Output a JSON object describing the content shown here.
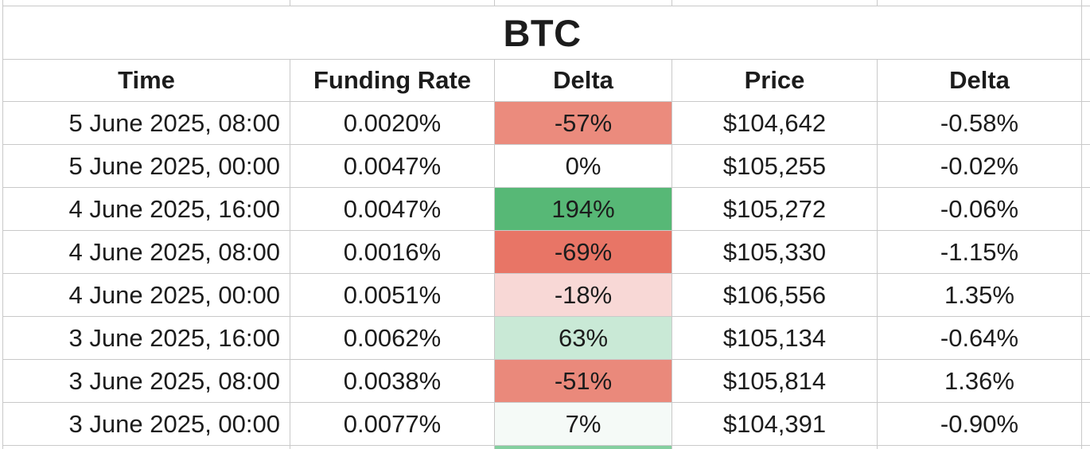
{
  "title": "BTC",
  "columns": [
    "Time",
    "Funding Rate",
    "Delta",
    "Price",
    "Delta"
  ],
  "rows": [
    {
      "time": "5 June 2025, 08:00",
      "funding_rate": "0.0020%",
      "funding_delta": "-57%",
      "funding_delta_bg": "#eb8b7d",
      "price": "$104,642",
      "price_delta": "-0.58%"
    },
    {
      "time": "5 June 2025, 00:00",
      "funding_rate": "0.0047%",
      "funding_delta": "0%",
      "funding_delta_bg": "#ffffff",
      "price": "$105,255",
      "price_delta": "-0.02%"
    },
    {
      "time": "4 June 2025, 16:00",
      "funding_rate": "0.0047%",
      "funding_delta": "194%",
      "funding_delta_bg": "#57b876",
      "price": "$105,272",
      "price_delta": "-0.06%"
    },
    {
      "time": "4 June 2025, 08:00",
      "funding_rate": "0.0016%",
      "funding_delta": "-69%",
      "funding_delta_bg": "#e87566",
      "price": "$105,330",
      "price_delta": "-1.15%"
    },
    {
      "time": "4 June 2025, 00:00",
      "funding_rate": "0.0051%",
      "funding_delta": "-18%",
      "funding_delta_bg": "#f8d8d6",
      "price": "$106,556",
      "price_delta": "1.35%"
    },
    {
      "time": "3 June 2025, 16:00",
      "funding_rate": "0.0062%",
      "funding_delta": "63%",
      "funding_delta_bg": "#c9e9d6",
      "price": "$105,134",
      "price_delta": "-0.64%"
    },
    {
      "time": "3 June 2025, 08:00",
      "funding_rate": "0.0038%",
      "funding_delta": "-51%",
      "funding_delta_bg": "#ea897b",
      "price": "$105,814",
      "price_delta": "1.36%"
    },
    {
      "time": "3 June 2025, 00:00",
      "funding_rate": "0.0077%",
      "funding_delta": "7%",
      "funding_delta_bg": "#f5faf7",
      "price": "$104,391",
      "price_delta": "-0.90%"
    }
  ],
  "next_row_peek": {
    "funding_delta_bg": "#84cf9f"
  },
  "colors": {
    "grid_border": "#c9c9c9",
    "text": "#1c1c1c",
    "background": "#ffffff",
    "delta_positive_strong": "#57b876",
    "delta_positive_light": "#c9e9d6",
    "delta_negative_strong": "#e87566",
    "delta_negative_light": "#f8d8d6"
  }
}
